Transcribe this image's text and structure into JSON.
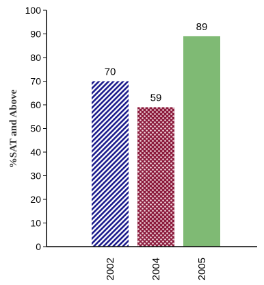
{
  "chart_data": {
    "type": "bar",
    "title": "",
    "xlabel": "",
    "ylabel": "%SAT and Above",
    "ylim": [
      0,
      100
    ],
    "yticks": [
      0,
      10,
      20,
      30,
      40,
      50,
      60,
      70,
      80,
      90,
      100
    ],
    "categories": [
      "2002",
      "2004",
      "2005"
    ],
    "values": [
      70,
      59,
      89
    ],
    "data_labels": [
      "70",
      "59",
      "89"
    ],
    "bar_styles": [
      {
        "pattern": "diagonal-stripes",
        "color": "#1a1a8c",
        "background": "#ffffff"
      },
      {
        "pattern": "dots",
        "color": "#f2d9df",
        "background": "#8b1a3c"
      },
      {
        "pattern": "solid",
        "color": "#7fba74"
      }
    ],
    "grid": false,
    "legend": "none"
  }
}
